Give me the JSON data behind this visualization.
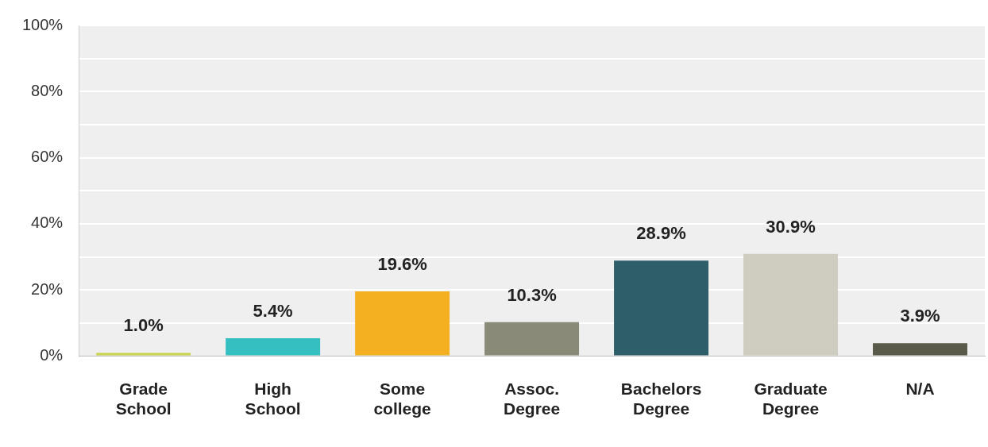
{
  "chart_data": {
    "type": "bar",
    "categories": [
      "Grade School",
      "High School",
      "Some college",
      "Assoc. Degree",
      "Bachelors Degree",
      "Graduate Degree",
      "N/A"
    ],
    "values": [
      1.0,
      5.4,
      19.6,
      10.3,
      28.9,
      30.9,
      3.9
    ],
    "colors": [
      "#c8d44a",
      "#35bfc0",
      "#f5b021",
      "#8a8a78",
      "#2e5e6a",
      "#cecdbf",
      "#5a5a4a"
    ],
    "value_labels": [
      "1.0%",
      "5.4%",
      "19.6%",
      "10.3%",
      "28.9%",
      "30.9%",
      "3.9%"
    ],
    "ylim": [
      0,
      100
    ],
    "yticks": [
      {
        "value": 0,
        "label": "0%"
      },
      {
        "value": 10,
        "label": null
      },
      {
        "value": 20,
        "label": "20%"
      },
      {
        "value": 30,
        "label": null
      },
      {
        "value": 40,
        "label": "40%"
      },
      {
        "value": 50,
        "label": null
      },
      {
        "value": 60,
        "label": "60%"
      },
      {
        "value": 70,
        "label": null
      },
      {
        "value": 80,
        "label": "80%"
      },
      {
        "value": 90,
        "label": null
      },
      {
        "value": 100,
        "label": "100%"
      }
    ],
    "grid": "y",
    "legend": false
  }
}
